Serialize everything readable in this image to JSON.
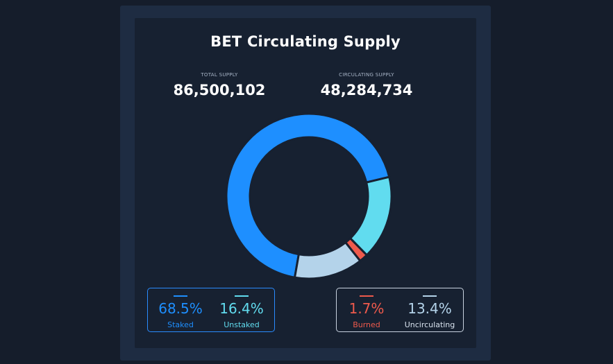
{
  "page": {
    "title": "BET Circulating Supply"
  },
  "stats": {
    "total": {
      "label": "TOTAL SUPPLY",
      "value": "86,500,102"
    },
    "circulating": {
      "label": "CIRCULATING SUPPLY",
      "value": "48,284,734"
    }
  },
  "colors": {
    "staked": "#1e8fff",
    "unstaked": "#61dcef",
    "burned": "#ef5a4c",
    "uncirculating": "#b4d3ea"
  },
  "legend": {
    "staked": {
      "pct": "68.5%",
      "name": "Staked"
    },
    "unstaked": {
      "pct": "16.4%",
      "name": "Unstaked"
    },
    "burned": {
      "pct": "1.7%",
      "name": "Burned"
    },
    "uncirculating": {
      "pct": "13.4%",
      "name": "Uncirculating"
    }
  },
  "chart_data": {
    "type": "pie",
    "title": "BET Circulating Supply",
    "categories": [
      "Staked",
      "Unstaked",
      "Burned",
      "Uncirculating"
    ],
    "values": [
      68.5,
      16.4,
      1.7,
      13.4
    ],
    "unit": "%",
    "donut": true
  }
}
